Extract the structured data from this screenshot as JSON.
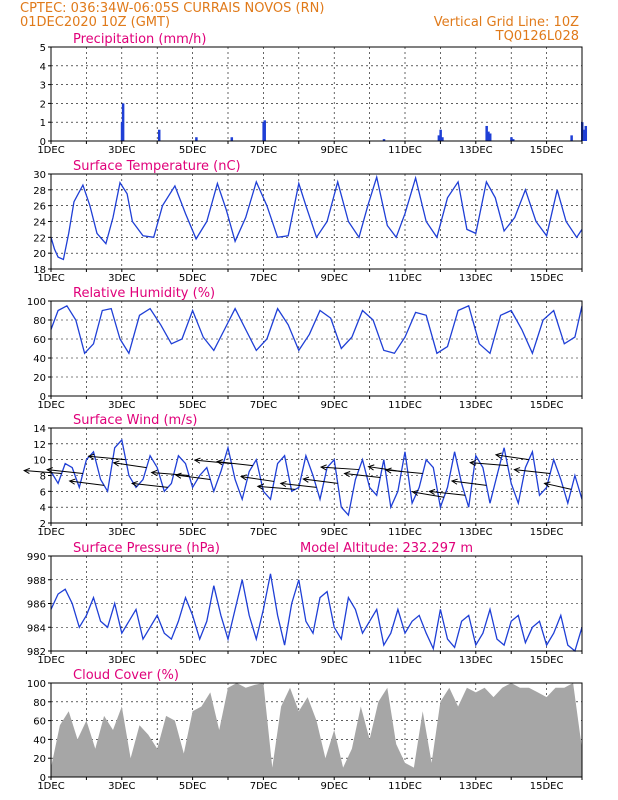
{
  "header": {
    "line1": "CPTEC:   036:34W-06:05S   CURRAIS NOVOS (RN)",
    "line2": "01DEC2020 10Z (GMT)",
    "grid_note": "Vertical Grid Line: 10Z",
    "run_id": "TQ0126L028"
  },
  "colors": {
    "header": "#e07a1a",
    "title": "#e0007a",
    "line": "#1f3fd6",
    "cloud": "#a6a6a6",
    "arrow": "#000000"
  },
  "x_tick_labels": [
    "1DEC",
    "3DEC",
    "5DEC",
    "7DEC",
    "9DEC",
    "11DEC",
    "13DEC",
    "15DEC"
  ],
  "altitude_note": "Model Altitude: 232.297 m",
  "chart_data": [
    {
      "type": "bar",
      "title": "Precipitation (mm/h)",
      "ylim": [
        0,
        5
      ],
      "yticks": [
        0,
        1,
        2,
        3,
        4,
        5
      ],
      "xlim_days": [
        0,
        15
      ],
      "series": [
        {
          "x": [
            2.0,
            2.03,
            3.05,
            4.1,
            5.1,
            6.0,
            6.03,
            9.4,
            10.95,
            11.0,
            11.05,
            12.3,
            12.35,
            12.4,
            13.0,
            13.05,
            14.7,
            15.0,
            15.05,
            15.1
          ],
          "values": [
            1.0,
            2.0,
            0.6,
            0.2,
            0.2,
            1.0,
            1.1,
            0.1,
            0.3,
            0.6,
            0.2,
            0.8,
            0.5,
            0.4,
            0.2,
            0.1,
            0.3,
            1.0,
            0.6,
            0.8
          ]
        }
      ]
    },
    {
      "type": "line",
      "title": "Surface Temperature (nC)",
      "ylim": [
        18,
        30
      ],
      "yticks": [
        18,
        20,
        22,
        24,
        26,
        28,
        30
      ],
      "xlim_days": [
        0,
        15
      ],
      "series": [
        {
          "x": [
            0,
            0.1,
            0.2,
            0.35,
            0.5,
            0.65,
            0.9,
            1.1,
            1.3,
            1.55,
            1.75,
            1.95,
            2.15,
            2.3,
            2.6,
            2.9,
            3.15,
            3.5,
            3.8,
            4.1,
            4.4,
            4.7,
            4.95,
            5.2,
            5.5,
            5.8,
            6.1,
            6.4,
            6.7,
            7.0,
            7.2,
            7.5,
            7.8,
            8.1,
            8.4,
            8.7,
            8.95,
            9.2,
            9.5,
            9.75,
            10.0,
            10.3,
            10.6,
            10.9,
            11.2,
            11.5,
            11.75,
            12.0,
            12.3,
            12.55,
            12.8,
            13.1,
            13.4,
            13.7,
            14.0,
            14.3,
            14.55,
            14.85,
            15.0
          ],
          "values": [
            22.0,
            20.5,
            19.5,
            19.2,
            22.5,
            26.5,
            28.6,
            26.0,
            22.5,
            21.2,
            24.5,
            28.9,
            27.5,
            24.0,
            22.2,
            22.0,
            26.0,
            28.5,
            25.0,
            21.8,
            24.0,
            28.8,
            25.5,
            21.5,
            24.5,
            29.0,
            26.0,
            22.0,
            22.2,
            28.8,
            26.0,
            22.0,
            24.0,
            29.0,
            24.0,
            22.0,
            26.0,
            29.6,
            23.5,
            22.0,
            25.0,
            29.5,
            24.0,
            22.0,
            27.0,
            29.0,
            23.0,
            22.5,
            29.0,
            27.0,
            22.8,
            24.5,
            28.0,
            24.0,
            22.2,
            28.0,
            24.0,
            22.0,
            23.0
          ]
        }
      ]
    },
    {
      "type": "line",
      "title": "Relative Humidity (%)",
      "ylim": [
        0,
        100
      ],
      "yticks": [
        0,
        20,
        40,
        60,
        80,
        100
      ],
      "xlim_days": [
        0,
        15
      ],
      "series": [
        {
          "x": [
            0,
            0.2,
            0.45,
            0.7,
            0.95,
            1.2,
            1.45,
            1.7,
            1.95,
            2.2,
            2.5,
            2.8,
            3.1,
            3.4,
            3.7,
            4.0,
            4.3,
            4.6,
            4.9,
            5.2,
            5.5,
            5.8,
            6.1,
            6.4,
            6.7,
            7.0,
            7.3,
            7.6,
            7.9,
            8.2,
            8.5,
            8.8,
            9.1,
            9.4,
            9.7,
            10.0,
            10.3,
            10.6,
            10.9,
            11.2,
            11.5,
            11.8,
            12.1,
            12.4,
            12.7,
            13.0,
            13.3,
            13.6,
            13.9,
            14.2,
            14.5,
            14.8,
            15.0
          ],
          "values": [
            70,
            90,
            95,
            80,
            45,
            55,
            90,
            92,
            60,
            45,
            85,
            92,
            75,
            55,
            60,
            90,
            62,
            48,
            70,
            92,
            70,
            48,
            60,
            92,
            75,
            48,
            65,
            90,
            82,
            50,
            62,
            90,
            80,
            48,
            45,
            62,
            88,
            85,
            45,
            52,
            90,
            95,
            55,
            45,
            85,
            90,
            70,
            45,
            80,
            90,
            55,
            62,
            95
          ]
        }
      ]
    },
    {
      "type": "line",
      "title": "Surface Wind (m/s)",
      "ylim": [
        2,
        14
      ],
      "yticks": [
        2,
        4,
        6,
        8,
        10,
        12,
        14
      ],
      "xlim_days": [
        0,
        15
      ],
      "series": [
        {
          "name": "speed",
          "x": [
            0,
            0.2,
            0.4,
            0.6,
            0.8,
            1.0,
            1.2,
            1.4,
            1.6,
            1.8,
            2.0,
            2.2,
            2.4,
            2.6,
            2.8,
            3.0,
            3.2,
            3.4,
            3.6,
            3.8,
            4.0,
            4.2,
            4.4,
            4.6,
            4.8,
            5.0,
            5.2,
            5.4,
            5.6,
            5.8,
            6.0,
            6.2,
            6.4,
            6.6,
            6.8,
            7.0,
            7.2,
            7.4,
            7.6,
            7.8,
            8.0,
            8.2,
            8.4,
            8.6,
            8.8,
            9.0,
            9.2,
            9.4,
            9.6,
            9.8,
            10.0,
            10.2,
            10.4,
            10.6,
            10.8,
            11.0,
            11.2,
            11.4,
            11.6,
            11.8,
            12.0,
            12.2,
            12.4,
            12.6,
            12.8,
            13.0,
            13.2,
            13.4,
            13.6,
            13.8,
            14.0,
            14.2,
            14.4,
            14.6,
            14.8,
            15.0
          ],
          "values": [
            8.5,
            7.0,
            9.5,
            9.0,
            6.5,
            10.0,
            11.0,
            7.5,
            6.0,
            11.5,
            12.5,
            8.0,
            6.5,
            7.5,
            10.5,
            9.0,
            6.0,
            7.0,
            10.5,
            9.5,
            6.5,
            8.0,
            9.0,
            6.0,
            8.5,
            11.5,
            7.5,
            5.0,
            8.5,
            10.0,
            6.0,
            5.0,
            9.5,
            10.5,
            6.0,
            6.5,
            10.5,
            8.0,
            5.0,
            9.0,
            10.0,
            4.0,
            3.0,
            7.5,
            10.0,
            6.5,
            5.5,
            10.0,
            4.0,
            6.0,
            11.0,
            4.5,
            6.5,
            10.0,
            9.0,
            4.0,
            6.5,
            11.0,
            7.0,
            4.0,
            10.5,
            9.0,
            4.5,
            8.0,
            11.5,
            7.0,
            4.5,
            9.0,
            11.0,
            5.5,
            6.5,
            10.0,
            7.5,
            4.5,
            8.0,
            5.0
          ]
        },
        {
          "name": "direction",
          "x": [
            0.3,
            0.9,
            1.5,
            2.1,
            2.7,
            3.3,
            3.9,
            4.5,
            5.1,
            5.7,
            6.3,
            6.9,
            7.5,
            8.1,
            8.7,
            9.3,
            9.9,
            10.5,
            11.1,
            11.7,
            12.3,
            12.9,
            13.5,
            14.1,
            14.7
          ],
          "values": [
            100,
            110,
            115,
            105,
            120,
            110,
            100,
            115,
            105,
            110,
            120,
            100,
            110,
            115,
            95,
            110,
            120,
            105,
            125,
            110,
            115,
            100,
            120,
            110,
            135
          ]
        }
      ]
    },
    {
      "type": "line",
      "title": "Surface Pressure (hPa)",
      "ylim": [
        982,
        990
      ],
      "yticks": [
        982,
        984,
        986,
        988,
        990
      ],
      "xlim_days": [
        0,
        15
      ],
      "series": [
        {
          "x": [
            0,
            0.2,
            0.4,
            0.6,
            0.8,
            1.0,
            1.2,
            1.4,
            1.6,
            1.8,
            2.0,
            2.2,
            2.4,
            2.6,
            2.8,
            3.0,
            3.2,
            3.4,
            3.6,
            3.8,
            4.0,
            4.2,
            4.4,
            4.6,
            4.8,
            5.0,
            5.2,
            5.4,
            5.6,
            5.8,
            6.0,
            6.2,
            6.4,
            6.6,
            6.8,
            7.0,
            7.2,
            7.4,
            7.6,
            7.8,
            8.0,
            8.2,
            8.4,
            8.6,
            8.8,
            9.0,
            9.2,
            9.4,
            9.6,
            9.8,
            10.0,
            10.2,
            10.4,
            10.6,
            10.8,
            11.0,
            11.2,
            11.4,
            11.6,
            11.8,
            12.0,
            12.2,
            12.4,
            12.6,
            12.8,
            13.0,
            13.2,
            13.4,
            13.6,
            13.8,
            14.0,
            14.2,
            14.4,
            14.6,
            14.8,
            15.0
          ],
          "values": [
            985.5,
            986.8,
            987.2,
            986.0,
            984.0,
            985.0,
            986.5,
            984.5,
            984.0,
            986.0,
            983.5,
            984.5,
            985.5,
            983.0,
            984.0,
            985.0,
            983.5,
            983.0,
            984.5,
            986.5,
            985.0,
            983.0,
            984.5,
            987.5,
            985.0,
            983.0,
            985.5,
            988.0,
            985.0,
            983.0,
            985.5,
            988.5,
            985.0,
            982.5,
            986.0,
            988.0,
            984.5,
            983.5,
            986.5,
            987.0,
            984.0,
            983.0,
            986.5,
            985.5,
            983.5,
            984.5,
            985.5,
            982.5,
            983.5,
            985.5,
            983.5,
            984.5,
            985.0,
            983.5,
            982.2,
            985.5,
            983.0,
            982.3,
            984.5,
            985.0,
            982.5,
            983.5,
            985.5,
            983.0,
            982.5,
            984.5,
            985.0,
            982.7,
            984.0,
            984.5,
            982.5,
            983.5,
            985.0,
            982.5,
            982.0,
            984.0
          ]
        }
      ]
    },
    {
      "type": "area",
      "title": "Cloud Cover (%)",
      "ylim": [
        0,
        100
      ],
      "yticks": [
        0,
        20,
        40,
        60,
        80,
        100
      ],
      "xlim_days": [
        0,
        15
      ],
      "series": [
        {
          "x": [
            0,
            0.25,
            0.5,
            0.75,
            1.0,
            1.25,
            1.5,
            1.75,
            2.0,
            2.25,
            2.5,
            2.75,
            3.0,
            3.25,
            3.5,
            3.75,
            4.0,
            4.25,
            4.5,
            4.75,
            5.0,
            5.25,
            5.5,
            5.75,
            6.0,
            6.25,
            6.5,
            6.75,
            7.0,
            7.25,
            7.5,
            7.75,
            8.0,
            8.25,
            8.5,
            8.75,
            9.0,
            9.25,
            9.5,
            9.75,
            10.0,
            10.25,
            10.5,
            10.75,
            11.0,
            11.25,
            11.5,
            11.75,
            12.0,
            12.25,
            12.5,
            12.75,
            13.0,
            13.25,
            13.5,
            13.75,
            14.0,
            14.25,
            14.5,
            14.75,
            15.0
          ],
          "values": [
            10,
            55,
            70,
            40,
            60,
            30,
            65,
            50,
            75,
            20,
            55,
            45,
            30,
            65,
            60,
            25,
            70,
            75,
            90,
            50,
            95,
            100,
            95,
            98,
            100,
            10,
            75,
            95,
            70,
            85,
            60,
            20,
            50,
            10,
            30,
            75,
            40,
            80,
            95,
            35,
            15,
            10,
            70,
            15,
            80,
            95,
            75,
            95,
            90,
            95,
            85,
            95,
            100,
            95,
            95,
            90,
            85,
            95,
            95,
            100,
            30
          ]
        }
      ]
    }
  ]
}
